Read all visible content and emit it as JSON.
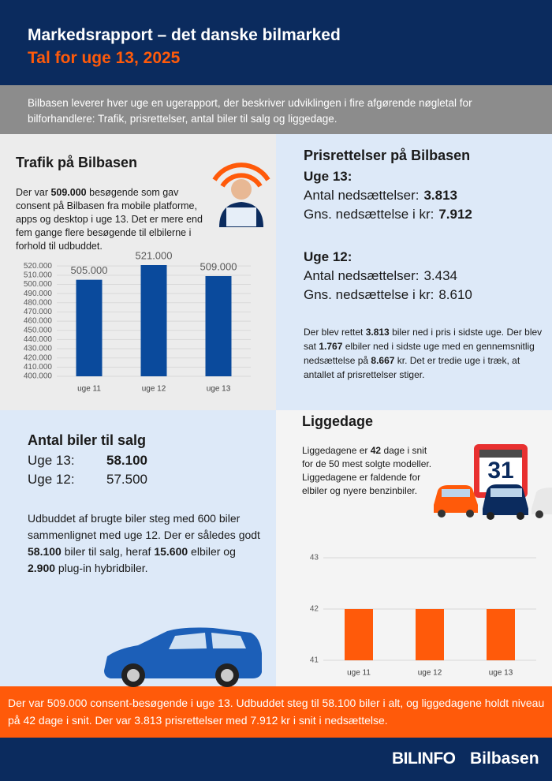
{
  "header": {
    "title": "Markedsrapport – det danske bilmarked",
    "subtitle": "Tal for uge 13, 2025"
  },
  "intro": "Bilbasen leverer hver uge en ugerapport, der beskriver udviklingen i fire afgørende nøgletal for bilforhandlere: Trafik, prisrettelser, antal biler til salg og liggedage.",
  "traffic": {
    "heading": "Trafik på Bilbasen",
    "text": [
      "Der var ",
      {
        "text": "509.000",
        "bold": true
      },
      " besøgende som gav consent på Bilbasen fra mobile platforme, apps og desktop i uge 13. Det er mere end fem gange flere besøgende til elbilerne i forhold til udbuddet."
    ]
  },
  "prices": {
    "heading": "Prisrettelser på Bilbasen",
    "weeks": [
      {
        "label": "Uge 13:",
        "bold": true,
        "rows": [
          {
            "label": "Antal nedsættelser:",
            "value": "3.813"
          },
          {
            "label": "Gns. nedsættelse i kr:",
            "value": "7.912"
          }
        ]
      },
      {
        "label": "Uge 12:",
        "bold": false,
        "rows": [
          {
            "label": "Antal nedsættelser:",
            "value": "3.434"
          },
          {
            "label": "Gns. nedsættelse i kr:",
            "value": "8.610"
          }
        ]
      }
    ],
    "text": [
      "Der blev rettet ",
      {
        "text": "3.813",
        "bold": true
      },
      " biler ned i pris i sidste uge. Der blev sat ",
      {
        "text": "1.767",
        "bold": true
      },
      " elbiler ned i sidste uge med en gennemsnitlig nedsættelse på ",
      {
        "text": "8.667",
        "bold": true
      },
      " kr. Det er tredie uge i træk, at antallet af prisrettelser stiger."
    ]
  },
  "stock": {
    "heading": "Antal biler til salg",
    "rows": [
      {
        "label": "Uge 13:",
        "value": "58.100",
        "bold": true
      },
      {
        "label": "Uge 12:",
        "value": "57.500",
        "bold": false
      }
    ],
    "text": [
      "Udbuddet af brugte biler steg med 600 biler sammenlignet med uge 12. Der er således godt ",
      {
        "text": "58.100",
        "bold": true
      },
      " biler til salg, heraf ",
      {
        "text": "15.600",
        "bold": true
      },
      " elbiler og ",
      {
        "text": "2.900",
        "bold": true
      },
      " plug-in hybridbiler."
    ]
  },
  "liggedage": {
    "heading": "Liggedage",
    "text": [
      "Liggedagene er ",
      {
        "text": "42",
        "bold": true
      },
      " dage i snit for de 50 mest solgte modeller. Liggedagene er faldende for elbiler og nyere benzinbiler."
    ],
    "sign": "31"
  },
  "chart_data": [
    {
      "type": "bar",
      "categories": [
        "uge 11",
        "uge 12",
        "uge 13"
      ],
      "values": [
        505000,
        521000,
        509000
      ],
      "value_labels": [
        "505.000",
        "521.000",
        "509.000"
      ],
      "color": "#0a4a9c",
      "ylim": [
        400000,
        521000
      ],
      "yticks": [
        {
          "value": 400000,
          "label": "400.000"
        },
        {
          "value": 410000,
          "label": "410.000"
        },
        {
          "value": 420000,
          "label": "420.000"
        },
        {
          "value": 430000,
          "label": "430.000"
        },
        {
          "value": 440000,
          "label": "440.000"
        },
        {
          "value": 450000,
          "label": "450.000"
        },
        {
          "value": 460000,
          "label": "460.000"
        },
        {
          "value": 470000,
          "label": "470.000"
        },
        {
          "value": 480000,
          "label": "480.000"
        },
        {
          "value": 490000,
          "label": "490.000"
        },
        {
          "value": 500000,
          "label": "500.000"
        },
        {
          "value": 510000,
          "label": "510.000"
        },
        {
          "value": 520000,
          "label": "520.000"
        }
      ],
      "grid": true
    },
    {
      "type": "bar",
      "categories": [
        "uge 11",
        "uge 12",
        "uge 13"
      ],
      "values": [
        42,
        42,
        42
      ],
      "color": "#ff5a0a",
      "ylim": [
        41,
        43
      ],
      "yticks": [
        41,
        42,
        43
      ],
      "grid": true
    }
  ],
  "summary": "Der var 509.000 consent-besøgende i uge 13. Udbuddet steg til 58.100 biler i alt, og liggedagene holdt niveau på 42 dage i snit. Der var 3.813 prisrettelser med 7.912 kr i snit i nedsættelse.",
  "footer": {
    "logos": [
      "BILINFO",
      "Bilbasen"
    ]
  }
}
